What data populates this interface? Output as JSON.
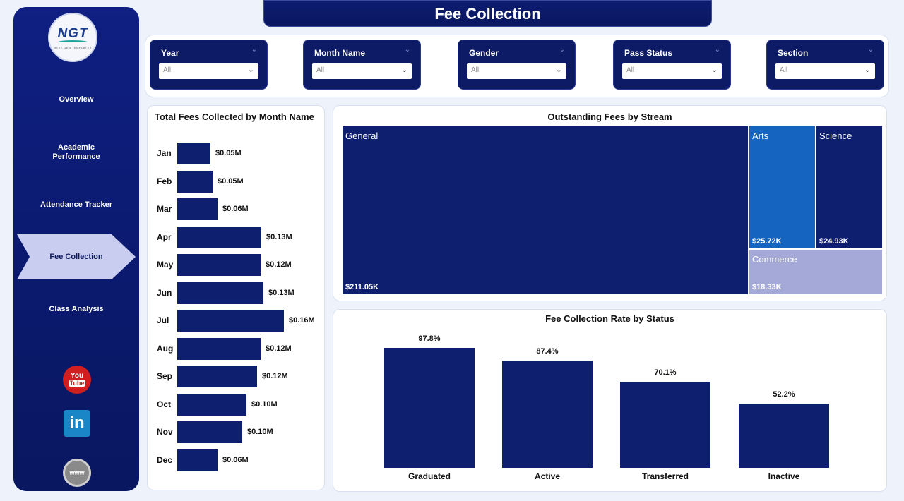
{
  "header": {
    "title": "Fee Collection"
  },
  "logo": {
    "text": "NGT",
    "subtext": "NEXT GEN TEMPLATES"
  },
  "sidebar": {
    "items": [
      {
        "label": "Overview"
      },
      {
        "label": "Academic Performance"
      },
      {
        "label": "Attendance Tracker"
      },
      {
        "label": "Fee Collection",
        "active": true
      },
      {
        "label": "Class Analysis"
      }
    ],
    "social": [
      {
        "icon": "youtube-icon",
        "label_top": "You",
        "label_bottom": "Tube"
      },
      {
        "icon": "linkedin-icon",
        "label": "in"
      },
      {
        "icon": "website-icon",
        "label": "www"
      }
    ]
  },
  "filters": [
    {
      "label": "Year",
      "value": "All"
    },
    {
      "label": "Month Name",
      "value": "All"
    },
    {
      "label": "Gender",
      "value": "All"
    },
    {
      "label": "Pass Status",
      "value": "All"
    },
    {
      "label": "Section",
      "value": "All"
    }
  ],
  "colors": {
    "navy": "#0d1f6e",
    "arts": "#1565c0",
    "science": "#0d1f6e",
    "commerce": "#a4a9d8",
    "background": "#eef2fa"
  },
  "chart_data": [
    {
      "type": "bar",
      "orientation": "horizontal",
      "title": "Total Fees Collected by Month Name",
      "categories": [
        "Jan",
        "Feb",
        "Mar",
        "Apr",
        "May",
        "Jun",
        "Jul",
        "Aug",
        "Sep",
        "Oct",
        "Nov",
        "Dec"
      ],
      "values": [
        0.05,
        0.05,
        0.06,
        0.13,
        0.12,
        0.13,
        0.16,
        0.12,
        0.12,
        0.1,
        0.1,
        0.06
      ],
      "value_labels": [
        "$0.05M",
        "$0.05M",
        "$0.06M",
        "$0.13M",
        "$0.12M",
        "$0.13M",
        "$0.16M",
        "$0.12M",
        "$0.12M",
        "$0.10M",
        "$0.10M",
        "$0.06M"
      ],
      "bar_fractions": [
        0.31,
        0.33,
        0.37,
        0.78,
        0.77,
        0.8,
        0.99,
        0.77,
        0.74,
        0.64,
        0.6,
        0.37
      ],
      "units": "$M"
    },
    {
      "type": "treemap",
      "title": "Outstanding Fees by Stream",
      "categories": [
        "General",
        "Arts",
        "Science",
        "Commerce"
      ],
      "values": [
        211.05,
        25.72,
        24.93,
        18.33
      ],
      "value_labels": [
        "$211.05K",
        "$25.72K",
        "$24.93K",
        "$18.33K"
      ],
      "units": "$K"
    },
    {
      "type": "bar",
      "orientation": "vertical",
      "title": "Fee Collection Rate by Status",
      "categories": [
        "Graduated",
        "Active",
        "Transferred",
        "Inactive"
      ],
      "values": [
        97.8,
        87.4,
        70.1,
        52.2
      ],
      "value_labels": [
        "97.8%",
        "87.4%",
        "70.1%",
        "52.2%"
      ],
      "units": "%"
    }
  ]
}
